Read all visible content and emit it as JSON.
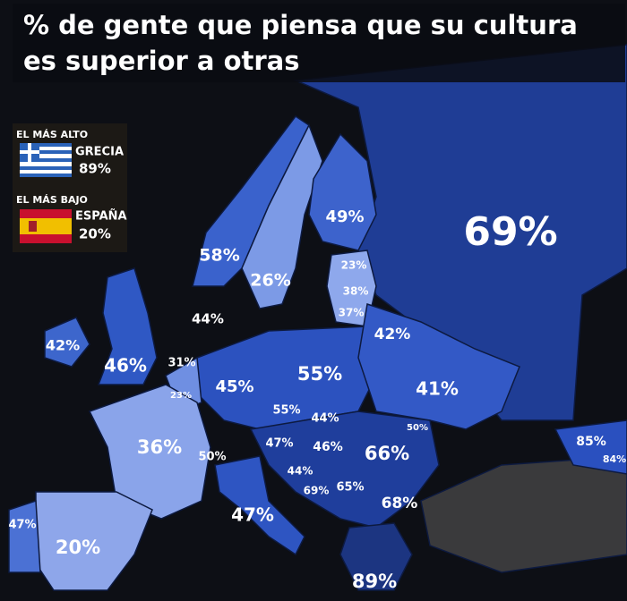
{
  "header": {
    "title": "% de gente que piensa que su cultura es superior a otras"
  },
  "legend": {
    "highest": {
      "heading": "EL MÁS ALTO",
      "country": "GRECIA",
      "label": "89%"
    },
    "lowest": {
      "heading": "EL MÁS BAJO",
      "country": "ESPAÑA",
      "label": "20%"
    }
  },
  "regions": [
    {
      "label": "69%"
    },
    {
      "label": "49%"
    },
    {
      "label": "23%"
    },
    {
      "label": "38%"
    },
    {
      "label": "37%"
    },
    {
      "label": "58%"
    },
    {
      "label": "26%"
    },
    {
      "label": "44%"
    },
    {
      "label": "42%"
    },
    {
      "label": "42%"
    },
    {
      "label": "46%"
    },
    {
      "label": "31%"
    },
    {
      "label": "23%"
    },
    {
      "label": "45%"
    },
    {
      "label": "55%"
    },
    {
      "label": "41%"
    },
    {
      "label": "55%"
    },
    {
      "label": "44%"
    },
    {
      "label": "50%"
    },
    {
      "label": "47%"
    },
    {
      "label": "46%"
    },
    {
      "label": "66%"
    },
    {
      "label": "85%"
    },
    {
      "label": "84%"
    },
    {
      "label": "36%"
    },
    {
      "label": "50%"
    },
    {
      "label": "44%"
    },
    {
      "label": "69%"
    },
    {
      "label": "65%"
    },
    {
      "label": "68%"
    },
    {
      "label": "47%"
    },
    {
      "label": "47%"
    },
    {
      "label": "20%"
    },
    {
      "label": "89%"
    }
  ]
}
